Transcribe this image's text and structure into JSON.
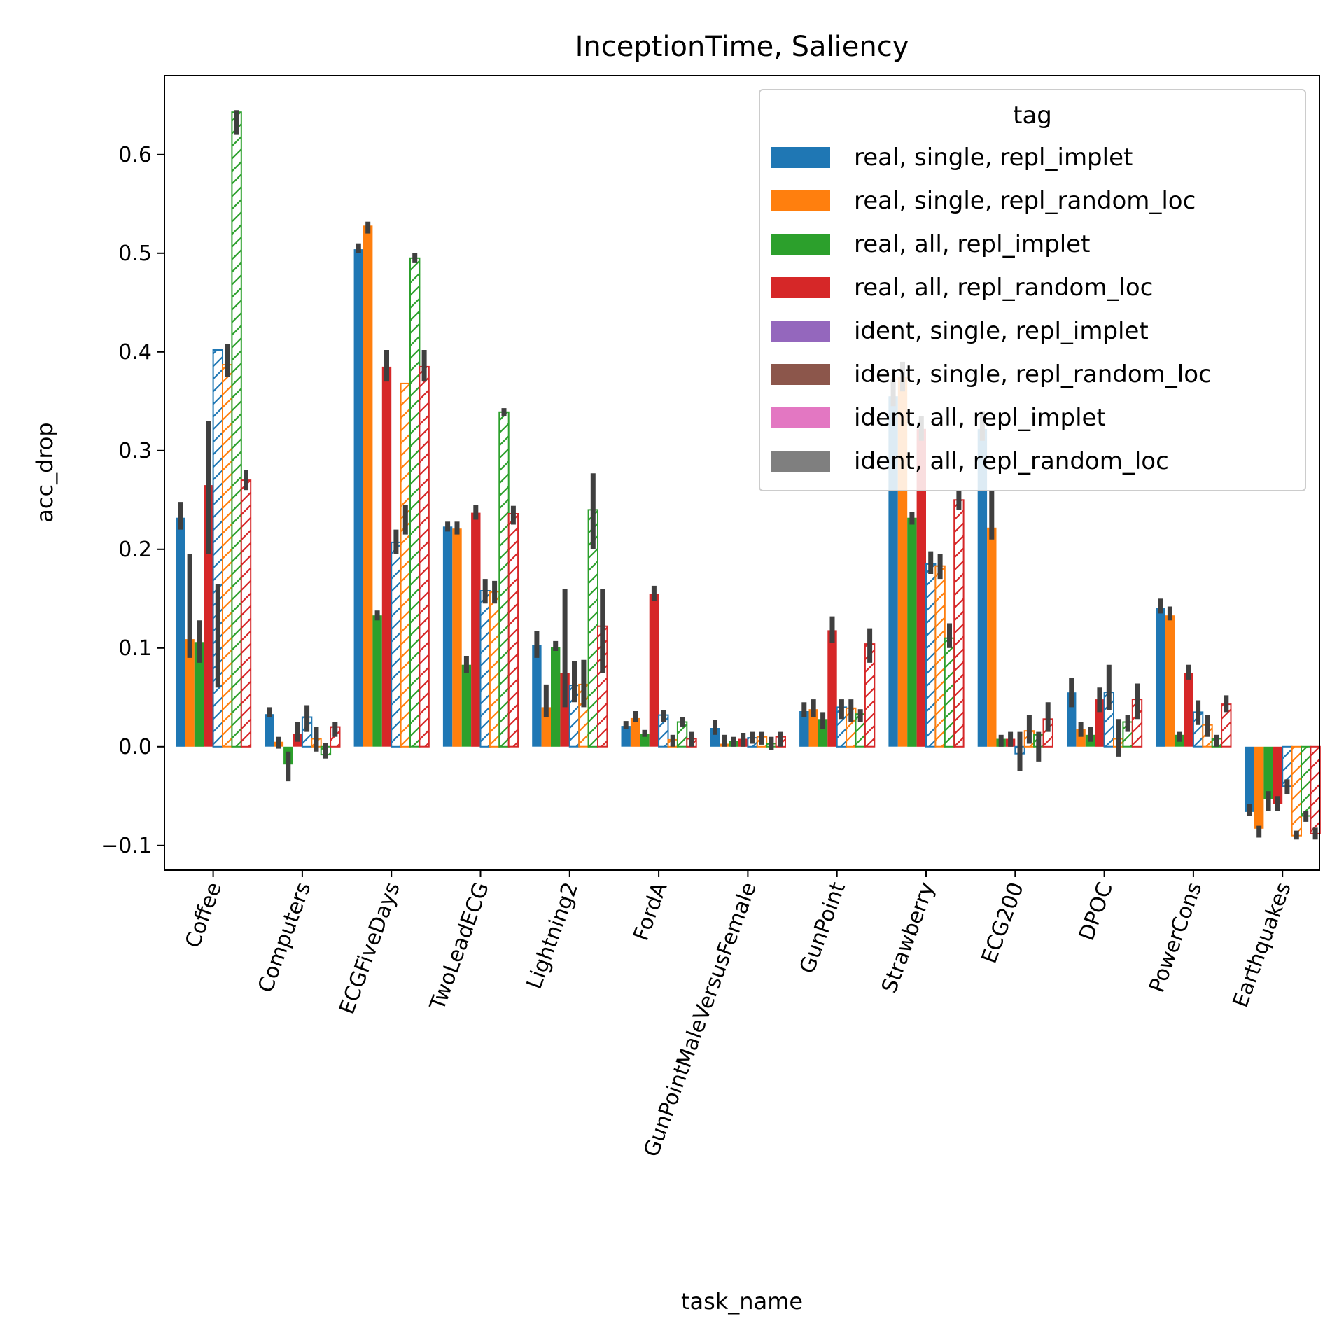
{
  "chart_data": {
    "type": "bar",
    "title": "InceptionTime, Saliency",
    "xlabel": "task_name",
    "ylabel": "acc_drop",
    "ylim": [
      -0.125,
      0.68
    ],
    "yticks": [
      -0.1,
      0.0,
      0.1,
      0.2,
      0.3,
      0.4,
      0.5,
      0.6
    ],
    "ytick_labels": [
      "−0.1",
      "0.0",
      "0.1",
      "0.2",
      "0.3",
      "0.4",
      "0.5",
      "0.6"
    ],
    "grid": false,
    "legend": {
      "title": "tag",
      "placement": "top-right"
    },
    "categories": [
      "Coffee",
      "Computers",
      "ECGFiveDays",
      "TwoLeadECG",
      "Lightning2",
      "FordA",
      "GunPointMaleVersusFemale",
      "GunPoint",
      "Strawberry",
      "ECG200",
      "DPOC",
      "PowerCons",
      "Earthquakes"
    ],
    "series": [
      {
        "name": "real, single, repl_implet",
        "color": "#1f77b4",
        "hatched": false,
        "values": [
          0.232,
          0.033,
          0.504,
          0.223,
          0.103,
          0.021,
          0.019,
          0.036,
          0.355,
          0.322,
          0.055,
          0.141,
          -0.066
        ]
      },
      {
        "name": "real, single, repl_random_loc",
        "color": "#ff7f0e",
        "hatched": false,
        "values": [
          0.109,
          0.005,
          0.528,
          0.221,
          0.04,
          0.029,
          0.003,
          0.038,
          0.375,
          0.222,
          0.018,
          0.133,
          -0.083
        ]
      },
      {
        "name": "real, all, repl_implet",
        "color": "#2ca02c",
        "hatched": false,
        "values": [
          0.106,
          -0.018,
          0.133,
          0.083,
          0.101,
          0.013,
          0.006,
          0.028,
          0.232,
          0.008,
          0.012,
          0.012,
          -0.053
        ]
      },
      {
        "name": "real, all, repl_random_loc",
        "color": "#d62728",
        "hatched": false,
        "values": [
          0.265,
          0.013,
          0.385,
          0.237,
          0.075,
          0.155,
          0.008,
          0.118,
          0.322,
          0.008,
          0.048,
          0.075,
          -0.058
        ]
      },
      {
        "name": "ident, single, repl_implet",
        "color": "#9467bd",
        "legend_color": "#9467bd",
        "draw_color": "#1f77b4",
        "hatched": true,
        "values": [
          0.402,
          0.03,
          0.207,
          0.158,
          0.062,
          0.032,
          0.009,
          0.04,
          0.185,
          -0.007,
          0.055,
          0.035,
          -0.04
        ]
      },
      {
        "name": "ident, single, repl_random_loc",
        "color": "#8c564b",
        "legend_color": "#8c564b",
        "draw_color": "#ff7f0e",
        "hatched": true,
        "values": [
          0.387,
          0.008,
          0.368,
          0.157,
          0.063,
          0.007,
          0.01,
          0.039,
          0.183,
          0.016,
          0.008,
          0.022,
          -0.09
        ]
      },
      {
        "name": "ident, all, repl_implet",
        "color": "#e377c2",
        "legend_color": "#e377c2",
        "draw_color": "#2ca02c",
        "hatched": true,
        "values": [
          0.643,
          -0.008,
          0.495,
          0.339,
          0.24,
          0.025,
          0.003,
          0.033,
          0.11,
          0.012,
          0.025,
          0.008,
          -0.07
        ]
      },
      {
        "name": "ident, all, repl_random_loc",
        "color": "#7f7f7f",
        "legend_color": "#7f7f7f",
        "draw_color": "#d62728",
        "hatched": true,
        "values": [
          0.27,
          0.02,
          0.385,
          0.236,
          0.122,
          0.008,
          0.01,
          0.104,
          0.25,
          0.028,
          0.048,
          0.043,
          -0.088
        ]
      }
    ],
    "error_bars": [
      [
        [
          0.22,
          0.248
        ],
        [
          0.03,
          0.04
        ],
        [
          0.5,
          0.51
        ],
        [
          0.218,
          0.228
        ],
        [
          0.09,
          0.117
        ],
        [
          0.018,
          0.026
        ],
        [
          0.012,
          0.027
        ],
        [
          0.03,
          0.045
        ],
        [
          0.345,
          0.372
        ],
        [
          0.31,
          0.34
        ],
        [
          0.04,
          0.07
        ],
        [
          0.135,
          0.15
        ],
        [
          -0.07,
          -0.058
        ]
      ],
      [
        [
          0.09,
          0.195
        ],
        [
          -0.002,
          0.01
        ],
        [
          0.52,
          0.532
        ],
        [
          0.215,
          0.228
        ],
        [
          0.03,
          0.063
        ],
        [
          0.025,
          0.036
        ],
        [
          0.0,
          0.012
        ],
        [
          0.03,
          0.048
        ],
        [
          0.36,
          0.39
        ],
        [
          0.21,
          0.26
        ],
        [
          0.01,
          0.025
        ],
        [
          0.128,
          0.142
        ],
        [
          -0.092,
          -0.08
        ]
      ],
      [
        [
          0.085,
          0.128
        ],
        [
          -0.035,
          -0.005
        ],
        [
          0.128,
          0.138
        ],
        [
          0.075,
          0.092
        ],
        [
          0.097,
          0.107
        ],
        [
          0.01,
          0.017
        ],
        [
          0.0,
          0.01
        ],
        [
          0.018,
          0.035
        ],
        [
          0.225,
          0.238
        ],
        [
          0.0,
          0.012
        ],
        [
          0.005,
          0.02
        ],
        [
          0.005,
          0.015
        ],
        [
          -0.065,
          -0.045
        ]
      ],
      [
        [
          0.195,
          0.33
        ],
        [
          0.005,
          0.025
        ],
        [
          0.37,
          0.402
        ],
        [
          0.23,
          0.245
        ],
        [
          0.04,
          0.16
        ],
        [
          0.148,
          0.163
        ],
        [
          0.0,
          0.014
        ],
        [
          0.105,
          0.132
        ],
        [
          0.31,
          0.335
        ],
        [
          0.0,
          0.015
        ],
        [
          0.035,
          0.06
        ],
        [
          0.068,
          0.083
        ],
        [
          -0.065,
          -0.05
        ]
      ],
      [
        [
          0.06,
          0.165
        ],
        [
          0.015,
          0.042
        ],
        [
          0.195,
          0.22
        ],
        [
          0.145,
          0.17
        ],
        [
          0.045,
          0.087
        ],
        [
          0.025,
          0.037
        ],
        [
          0.003,
          0.015
        ],
        [
          0.028,
          0.048
        ],
        [
          0.175,
          0.198
        ],
        [
          -0.025,
          0.015
        ],
        [
          0.037,
          0.083
        ],
        [
          0.022,
          0.047
        ],
        [
          -0.048,
          -0.033
        ]
      ],
      [
        [
          0.375,
          0.408
        ],
        [
          -0.005,
          0.02
        ],
        [
          0.215,
          0.245
        ],
        [
          0.145,
          0.168
        ],
        [
          0.04,
          0.088
        ],
        [
          0.0,
          0.012
        ],
        [
          0.002,
          0.015
        ],
        [
          0.025,
          0.048
        ],
        [
          0.17,
          0.195
        ],
        [
          0.003,
          0.032
        ],
        [
          -0.01,
          0.028
        ],
        [
          0.01,
          0.032
        ],
        [
          -0.094,
          -0.085
        ]
      ],
      [
        [
          0.62,
          0.645
        ],
        [
          -0.012,
          0.004
        ],
        [
          0.49,
          0.5
        ],
        [
          0.335,
          0.343
        ],
        [
          0.2,
          0.277
        ],
        [
          0.02,
          0.03
        ],
        [
          -0.003,
          0.01
        ],
        [
          0.025,
          0.038
        ],
        [
          0.1,
          0.125
        ],
        [
          -0.015,
          0.015
        ],
        [
          0.015,
          0.032
        ],
        [
          0.0,
          0.012
        ],
        [
          -0.076,
          -0.065
        ]
      ],
      [
        [
          0.26,
          0.28
        ],
        [
          0.01,
          0.025
        ],
        [
          0.37,
          0.402
        ],
        [
          0.225,
          0.244
        ],
        [
          0.075,
          0.16
        ],
        [
          0.0,
          0.015
        ],
        [
          0.0,
          0.015
        ],
        [
          0.085,
          0.12
        ],
        [
          0.24,
          0.26
        ],
        [
          0.015,
          0.045
        ],
        [
          0.028,
          0.064
        ],
        [
          0.035,
          0.052
        ],
        [
          -0.094,
          -0.082
        ]
      ]
    ]
  }
}
